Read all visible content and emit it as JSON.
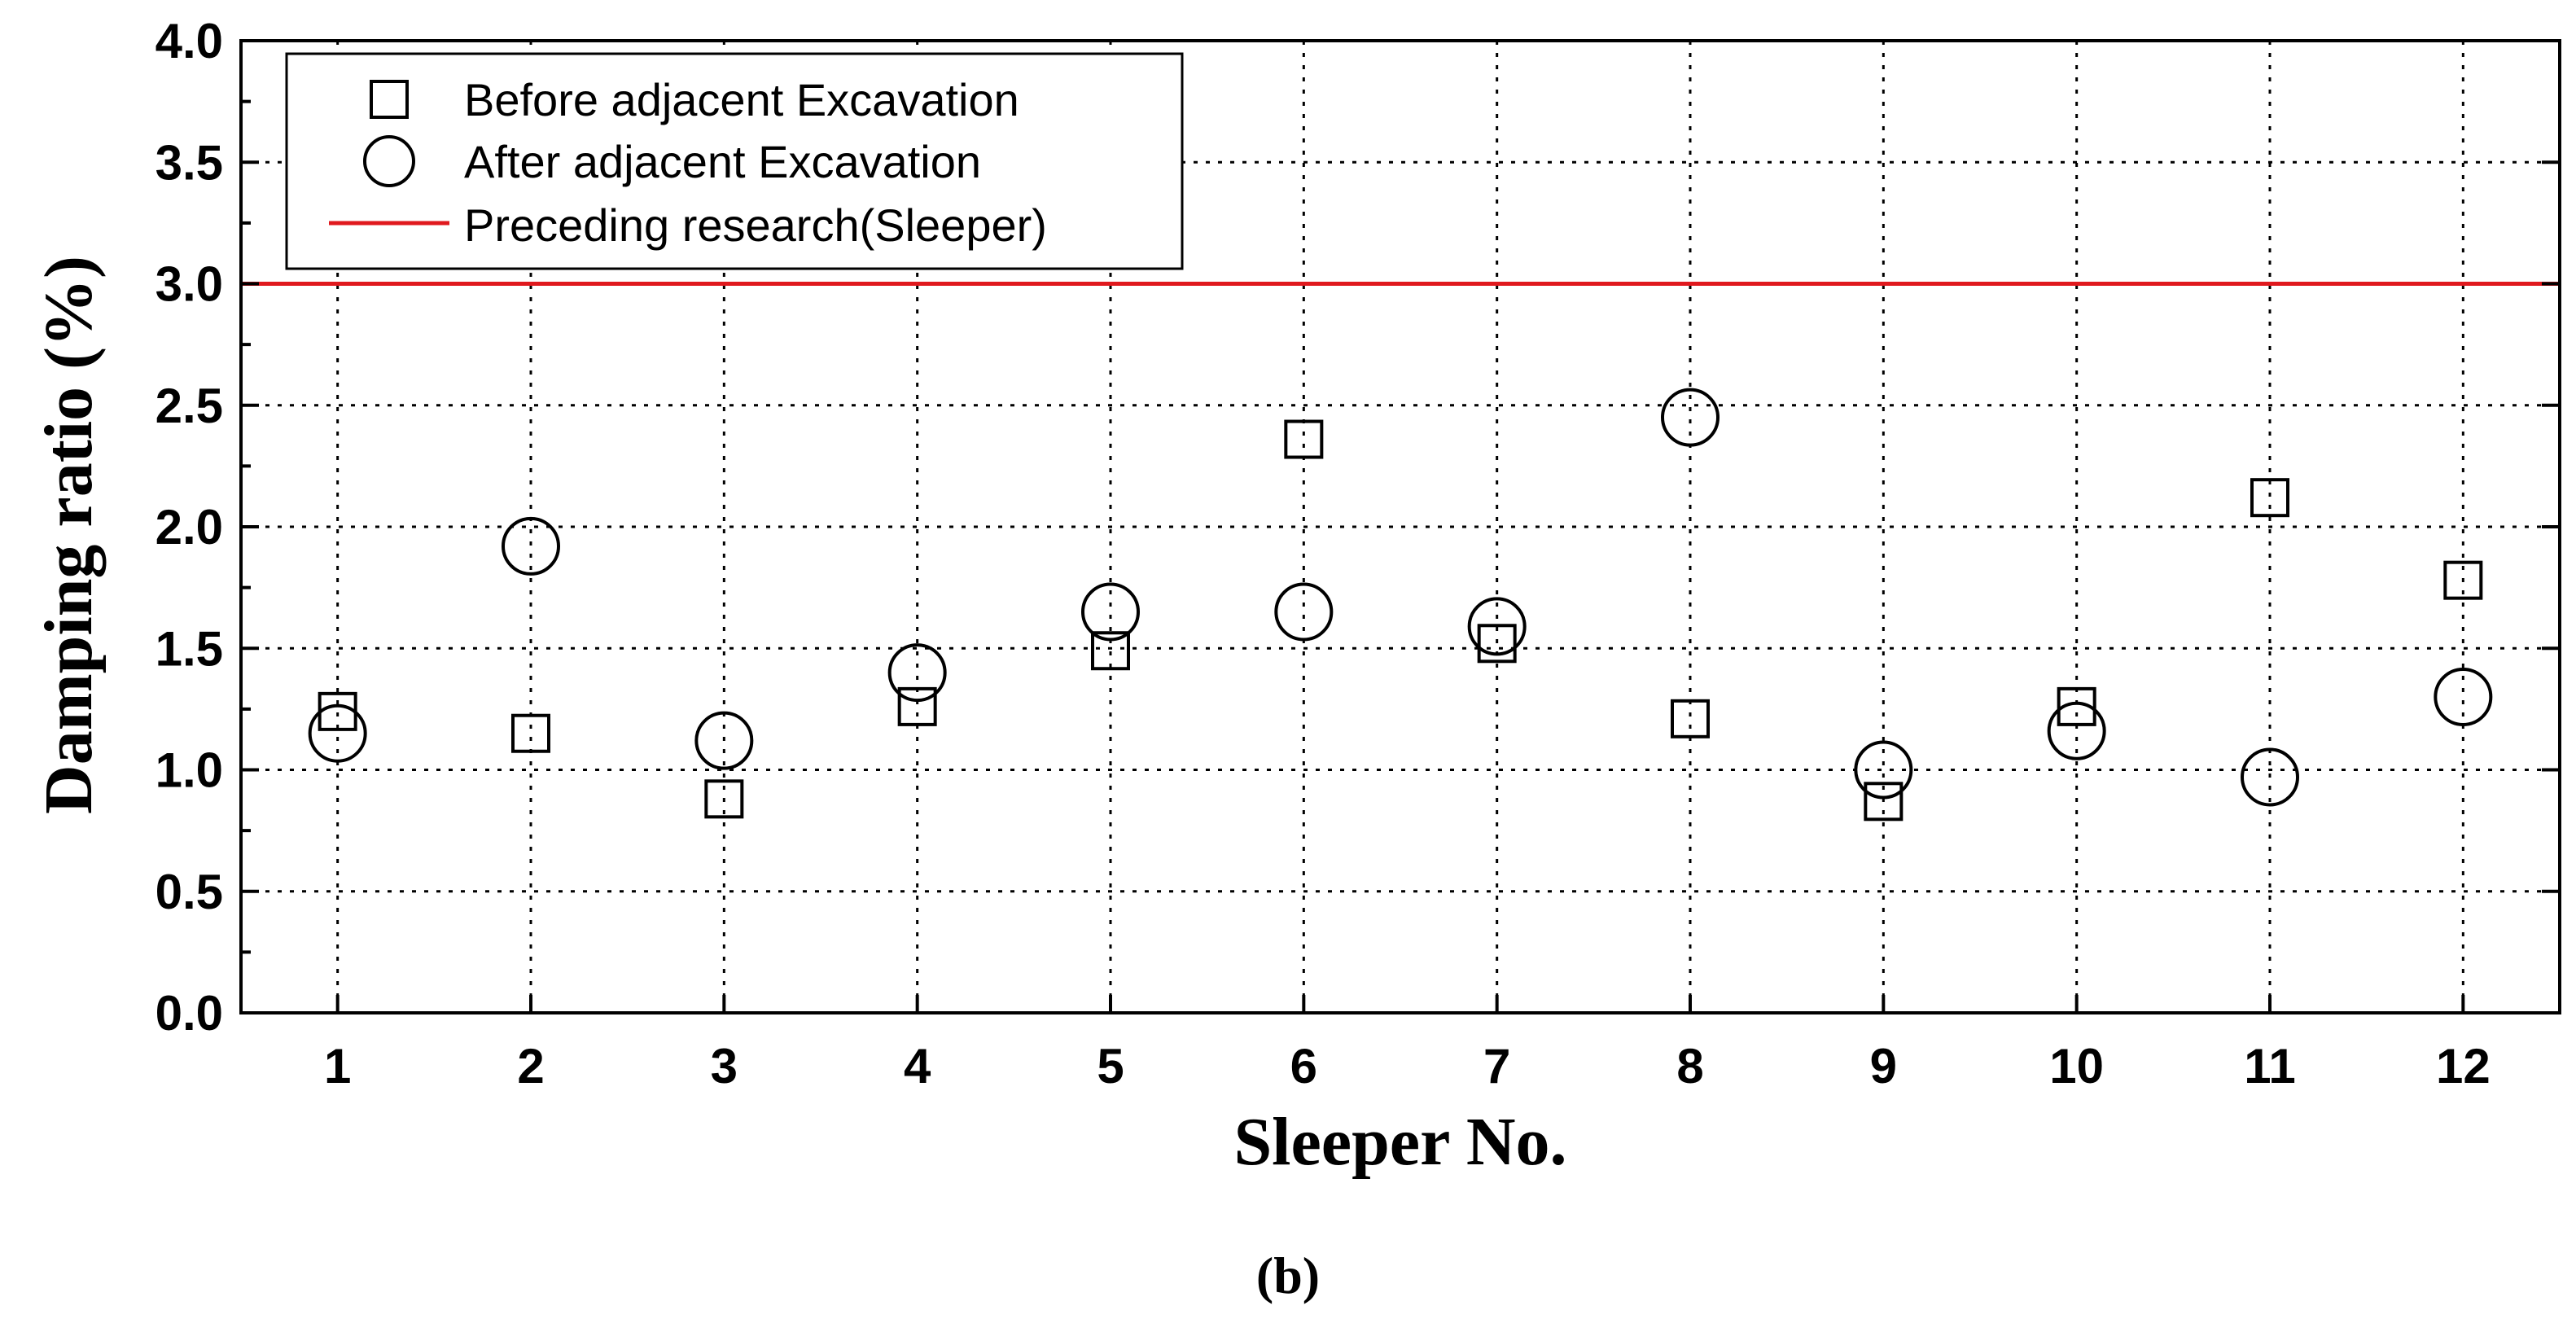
{
  "chart_data": {
    "type": "scatter",
    "x": [
      1,
      2,
      3,
      4,
      5,
      6,
      7,
      8,
      9,
      10,
      11,
      12
    ],
    "xlim": [
      0.5,
      12.5
    ],
    "ylim": [
      0.0,
      4.0
    ],
    "xticks": [
      "1",
      "2",
      "3",
      "4",
      "5",
      "6",
      "7",
      "8",
      "9",
      "10",
      "11",
      "12"
    ],
    "yticks": [
      "0.0",
      "0.5",
      "1.0",
      "1.5",
      "2.0",
      "2.5",
      "3.0",
      "3.5",
      "4.0"
    ],
    "xlabel": "Sleeper No.",
    "ylabel": "Damping ratio (%)",
    "grid": true,
    "legend_position": "top-left",
    "series": [
      {
        "name": "Before adjacent Excavation",
        "marker": "square",
        "color": "#000000",
        "values": [
          1.24,
          1.15,
          0.88,
          1.26,
          1.49,
          2.36,
          1.52,
          1.21,
          0.87,
          1.26,
          2.12,
          1.78
        ]
      },
      {
        "name": "After adjacent Excavation",
        "marker": "circle",
        "color": "#000000",
        "values": [
          1.15,
          1.92,
          1.12,
          1.4,
          1.65,
          1.65,
          1.59,
          2.45,
          1.0,
          1.16,
          0.97,
          1.3
        ]
      }
    ],
    "reference_line": {
      "name": "Preceding research(Sleeper)",
      "y": 3.0,
      "color": "#e0191e"
    },
    "caption": "(b)"
  }
}
